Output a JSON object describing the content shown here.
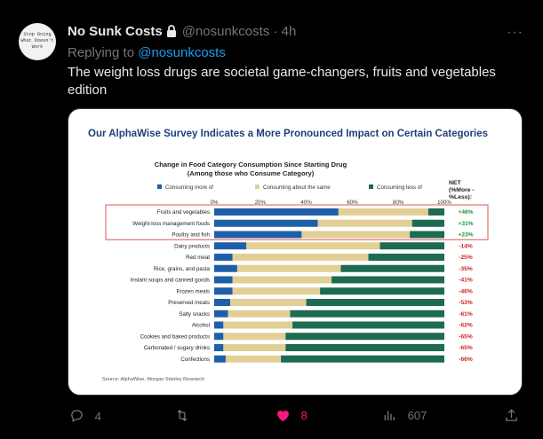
{
  "tweet": {
    "display_name": "No Sunk Costs",
    "handle": "@nosunkcosts",
    "separator": "·",
    "time": "4h",
    "replying_prefix": "Replying to ",
    "replying_handle": "@nosunkcosts",
    "text": "The weight loss drugs are societal game-changers, fruits and vegetables edition",
    "avatar_lines": [
      "Stop Doing",
      "What Doesn't",
      "Work"
    ],
    "more_icon": "more-horizontal-icon",
    "lock_icon": "lock-icon"
  },
  "actions": {
    "reply_count": "4",
    "retweet_count": "",
    "like_count": "8",
    "views_count": "607",
    "icons": [
      "reply-icon",
      "retweet-icon",
      "heart-icon",
      "views-icon",
      "share-icon"
    ],
    "like_color": "#f91880"
  },
  "image": {
    "title": "Our AlphaWise Survey Indicates a More Pronounced Impact on Certain Categories",
    "source": "Source: AlphaWise, Morgan Stanley Research"
  },
  "chart_data": {
    "type": "bar",
    "stacked": true,
    "orientation": "horizontal",
    "title": "Change in Food Category Consumption Since Starting Drug (Among those who Consume Category)",
    "x_ticks": [
      "0%",
      "20%",
      "40%",
      "60%",
      "80%",
      "100%"
    ],
    "xlim": [
      0,
      100
    ],
    "net_header": "NET (%More - %Less):",
    "categories": [
      "Fruits and vegetables",
      "Weight-loss management foods",
      "Poultry and fish",
      "Dairy products",
      "Red meat",
      "Rice, grains, and pasta",
      "Instant soups and canned goods",
      "Frozen meals",
      "Preserved meats",
      "Salty snacks",
      "Alcohol",
      "Cookies and baked products",
      "Carbonated / sugary drinks",
      "Confections"
    ],
    "series": [
      {
        "name": "Consuming more of",
        "color": "#1f5fa8",
        "values": [
          54,
          45,
          38,
          14,
          8,
          10,
          8,
          8,
          7,
          6,
          4,
          4,
          4,
          5
        ]
      },
      {
        "name": "Consuming about the same",
        "color": "#e2cf95",
        "values": [
          39,
          41,
          47,
          58,
          59,
          45,
          43,
          38,
          33,
          27,
          30,
          27,
          27,
          24
        ]
      },
      {
        "name": "Consuming less of",
        "color": "#1c6b52",
        "values": [
          7,
          14,
          15,
          28,
          33,
          45,
          49,
          54,
          60,
          67,
          66,
          69,
          69,
          71
        ]
      }
    ],
    "net": [
      "+46%",
      "+31%",
      "+23%",
      "-14%",
      "-25%",
      "-35%",
      "-41%",
      "-46%",
      "-53%",
      "-61%",
      "-62%",
      "-65%",
      "-65%",
      "-66%"
    ],
    "net_colors": [
      "#1a9a3a",
      "#1a9a3a",
      "#1a9a3a",
      "#d11f1f",
      "#d11f1f",
      "#d11f1f",
      "#d11f1f",
      "#d11f1f",
      "#d11f1f",
      "#d11f1f",
      "#d11f1f",
      "#d11f1f",
      "#d11f1f",
      "#d11f1f"
    ],
    "highlight_rows": [
      0,
      1,
      2
    ],
    "highlight_color": "#e05555"
  }
}
